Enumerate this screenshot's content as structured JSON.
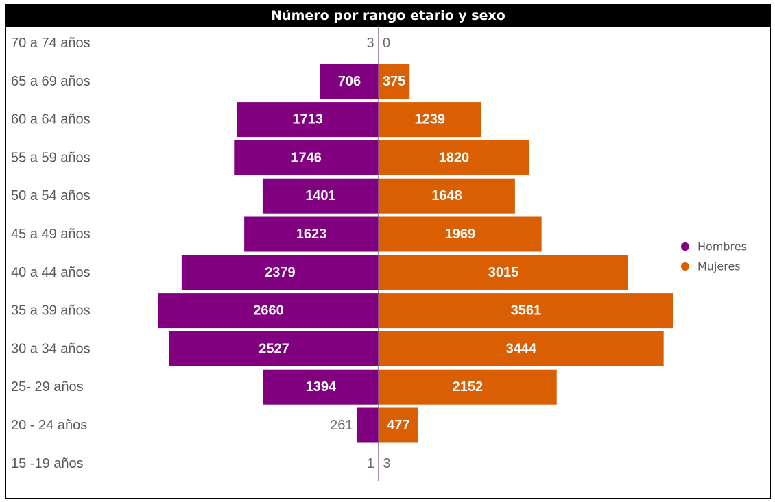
{
  "chart_data": {
    "type": "bar",
    "orientation": "horizontal-pyramid",
    "title": "Número por rango etario y sexo",
    "categories": [
      "70 a 74 años",
      "65 a 69 años",
      "60 a 64 años",
      "55 a 59 años",
      "50 a 54 años",
      "45 a 49 años",
      "40 a 44 años",
      "35 a 39 años",
      "30 a 34 años",
      "25- 29 años",
      "20 - 24 años",
      "15 -19 años"
    ],
    "series": [
      {
        "name": "Hombres",
        "side": "left",
        "color": "#800080",
        "values": [
          3,
          706,
          1713,
          1746,
          1401,
          1623,
          2379,
          2660,
          2527,
          1394,
          261,
          1
        ]
      },
      {
        "name": "Mujeres",
        "side": "right",
        "color": "#D95F02",
        "values": [
          0,
          375,
          1239,
          1820,
          1648,
          1969,
          3015,
          3561,
          3444,
          2152,
          477,
          3
        ]
      }
    ],
    "legend_position": "right",
    "grid": false,
    "center_line_color": "#8B6B8B"
  }
}
